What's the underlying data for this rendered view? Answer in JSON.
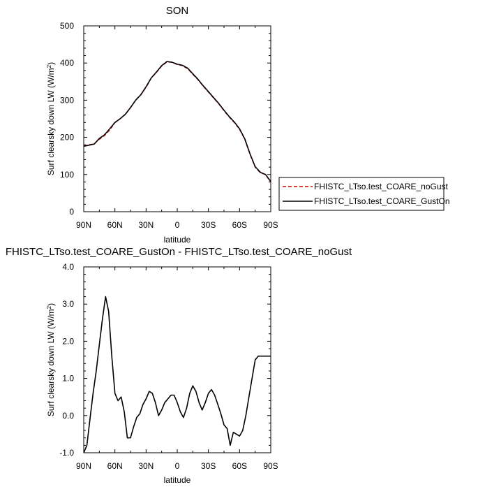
{
  "chart_data": [
    {
      "type": "line",
      "title": "SON",
      "xlabel": "latitude",
      "ylabel": "Surf clearsky down LW (W/m²)",
      "xlim": [
        90,
        -90
      ],
      "ylim": [
        0,
        500
      ],
      "x_tick_labels": [
        "90N",
        "60N",
        "30N",
        "0",
        "30S",
        "60S",
        "90S"
      ],
      "y_tick_labels": [
        "0",
        "100",
        "200",
        "300",
        "400",
        "500"
      ],
      "legend": "outside-right",
      "series": [
        {
          "name": "FHISTC_LTso.test_COARE_noGust",
          "color": "#cc0000",
          "dash": "dashed",
          "x": [
            90,
            85,
            80,
            75,
            70,
            65,
            60,
            55,
            50,
            45,
            40,
            35,
            30,
            25,
            20,
            15,
            10,
            5,
            0,
            -5,
            -10,
            -15,
            -20,
            -25,
            -30,
            -35,
            -40,
            -45,
            -50,
            -55,
            -60,
            -65,
            -70,
            -75,
            -80,
            -85,
            -90
          ],
          "y": [
            177,
            180,
            182,
            195,
            205,
            220,
            240,
            250,
            262,
            280,
            300,
            315,
            335,
            360,
            375,
            392,
            403,
            402,
            396,
            393,
            385,
            370,
            355,
            338,
            322,
            306,
            290,
            272,
            255,
            240,
            222,
            195,
            155,
            120,
            105,
            100,
            80
          ]
        },
        {
          "name": "FHISTC_LTso.test_COARE_GustOn",
          "color": "#000000",
          "dash": "solid",
          "x": [
            90,
            85,
            80,
            75,
            70,
            65,
            60,
            55,
            50,
            45,
            40,
            35,
            30,
            25,
            20,
            15,
            10,
            5,
            0,
            -5,
            -10,
            -15,
            -20,
            -25,
            -30,
            -35,
            -40,
            -45,
            -50,
            -55,
            -60,
            -65,
            -70,
            -75,
            -80,
            -85,
            -90
          ],
          "y": [
            176,
            179,
            182,
            197,
            207,
            223,
            240,
            250,
            262,
            280,
            300,
            315,
            336,
            360,
            376,
            393,
            404,
            402,
            397,
            394,
            386,
            371,
            356,
            339,
            323,
            307,
            291,
            273,
            256,
            241,
            223,
            196,
            156,
            121,
            106,
            100,
            81
          ]
        }
      ]
    },
    {
      "type": "line",
      "title": "FHISTC_LTso.test_COARE_GustOn - FHISTC_LTso.test_COARE_noGust",
      "xlabel": "latitude",
      "ylabel": "Surf clearsky down LW (W/m²)",
      "xlim": [
        90,
        -90
      ],
      "ylim": [
        -1.0,
        4.0
      ],
      "x_tick_labels": [
        "90N",
        "60N",
        "30N",
        "0",
        "30S",
        "60S",
        "90S"
      ],
      "y_tick_labels": [
        "-1.0",
        "0.0",
        "1.0",
        "2.0",
        "3.0",
        "4.0"
      ],
      "series": [
        {
          "color": "#000000",
          "x": [
            90,
            87,
            84,
            81,
            78,
            75,
            72,
            69,
            66,
            63,
            60,
            57,
            54,
            51,
            48,
            45,
            42,
            39,
            36,
            33,
            30,
            27,
            24,
            21,
            18,
            15,
            12,
            9,
            6,
            3,
            0,
            -3,
            -6,
            -9,
            -12,
            -15,
            -18,
            -21,
            -24,
            -27,
            -30,
            -33,
            -36,
            -39,
            -42,
            -45,
            -48,
            -51,
            -54,
            -57,
            -60,
            -63,
            -66,
            -69,
            -72,
            -75,
            -78,
            -81,
            -84,
            -87,
            -90
          ],
          "y": [
            -1.0,
            -0.8,
            -0.1,
            0.6,
            1.2,
            1.9,
            2.6,
            3.2,
            2.8,
            1.6,
            0.6,
            0.4,
            0.5,
            0.1,
            -0.6,
            -0.6,
            -0.3,
            -0.05,
            0.05,
            0.3,
            0.45,
            0.65,
            0.6,
            0.35,
            0.0,
            0.15,
            0.35,
            0.45,
            0.55,
            0.55,
            0.35,
            0.1,
            -0.05,
            0.2,
            0.6,
            0.8,
            0.65,
            0.35,
            0.15,
            0.35,
            0.6,
            0.7,
            0.55,
            0.3,
            0.05,
            -0.25,
            -0.35,
            -0.8,
            -0.45,
            -0.5,
            -0.55,
            -0.4,
            0.0,
            0.5,
            1.0,
            1.5,
            1.6,
            1.6,
            1.6,
            1.6,
            1.6
          ]
        }
      ]
    }
  ]
}
